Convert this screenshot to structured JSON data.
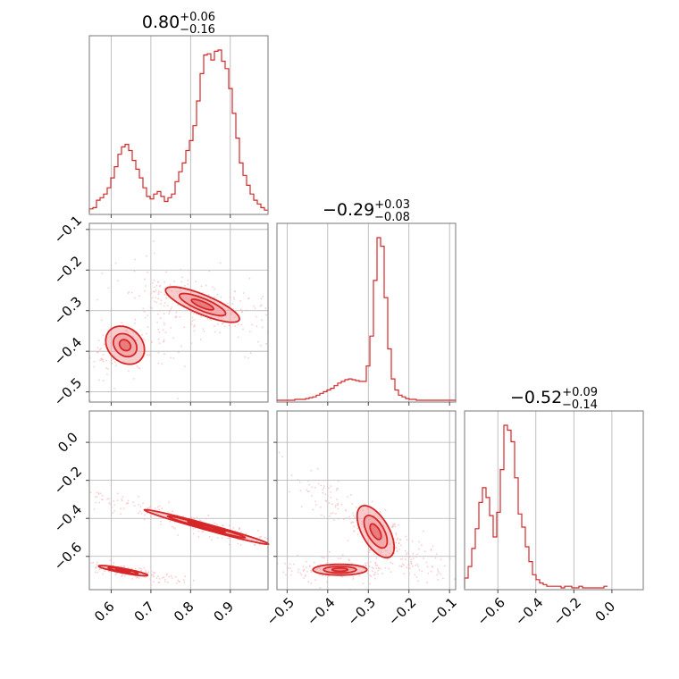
{
  "chart_data": {
    "type": "corner",
    "color": "#d62728",
    "fill_color": "#f2a0a3",
    "point_color": "#f6b9bc",
    "grid": true,
    "parameters": [
      {
        "title_value": "0.80",
        "title_plus": "+0.06",
        "title_minus": "−0.16",
        "range": [
          0.545,
          0.995
        ],
        "ticks": [
          0.6,
          0.7,
          0.8,
          0.9
        ],
        "tick_labels": [
          "0.6",
          "0.7",
          "0.8",
          "0.9"
        ]
      },
      {
        "title_value": "−0.29",
        "title_plus": "+0.03",
        "title_minus": "−0.08",
        "range": [
          -0.525,
          -0.085
        ],
        "ticks": [
          -0.5,
          -0.4,
          -0.3,
          -0.2,
          -0.1
        ],
        "tick_labels": [
          "−0.5",
          "−0.4",
          "−0.3",
          "−0.2",
          "−0.1"
        ]
      },
      {
        "title_value": "−0.52",
        "title_plus": "+0.09",
        "title_minus": "−0.14",
        "range": [
          -0.775,
          0.165
        ],
        "ticks": [
          -0.6,
          -0.4,
          -0.2,
          0.0
        ],
        "tick_labels": [
          "−0.6",
          "−0.4",
          "−0.2",
          "0.0"
        ]
      }
    ],
    "histograms": [
      {
        "bin_start": 0.545,
        "bin_width": 0.009,
        "counts": [
          3,
          4,
          10,
          12,
          15,
          20,
          28,
          37,
          47,
          53,
          55,
          50,
          42,
          35,
          28,
          20,
          13,
          11,
          15,
          17,
          13,
          9,
          12,
          15,
          25,
          33,
          40,
          50,
          58,
          70,
          90,
          112,
          127,
          128,
          123,
          130,
          131,
          122,
          116,
          100,
          80,
          60,
          40,
          30,
          22,
          15,
          10,
          7,
          4,
          2
        ]
      },
      {
        "bin_start": -0.525,
        "bin_width": 0.0088,
        "counts": [
          0,
          0,
          0,
          0,
          0,
          1,
          1,
          1,
          2,
          3,
          4,
          6,
          8,
          10,
          12,
          14,
          17,
          20,
          22,
          24,
          25,
          24,
          23,
          22,
          22,
          40,
          75,
          140,
          190,
          180,
          120,
          60,
          25,
          12,
          6,
          4,
          2,
          1,
          1,
          0,
          0,
          0,
          0,
          0,
          0,
          0,
          0,
          0,
          0,
          0
        ]
      },
      {
        "bin_start": -0.775,
        "bin_width": 0.0188,
        "counts": [
          6,
          13,
          24,
          36,
          52,
          61,
          55,
          44,
          31,
          46,
          72,
          99,
          96,
          89,
          67,
          45,
          37,
          25,
          16,
          8,
          5,
          3,
          2,
          1,
          1,
          1,
          1,
          0,
          1,
          1,
          0,
          0,
          1,
          0,
          0,
          0,
          0,
          0,
          0,
          1
        ]
      }
    ],
    "contours": [
      {
        "x_param": 0,
        "y_param": 1,
        "clusters": [
          {
            "cx": 0.83,
            "cy": -0.285,
            "sx": 0.05,
            "sy": 0.012,
            "rot": -22,
            "levels": [
              2.0,
              1.25,
              0.6
            ]
          },
          {
            "cx": 0.635,
            "cy": -0.385,
            "sx": 0.028,
            "sy": 0.022,
            "rot": -40,
            "levels": [
              1.9,
              1.15,
              0.55
            ]
          }
        ]
      },
      {
        "x_param": 0,
        "y_param": 2,
        "clusters": [
          {
            "cx": 0.84,
            "cy": -0.445,
            "sx": 0.09,
            "sy": 0.007,
            "rot": -30,
            "levels": [
              2.0,
              1.25,
              0.6
            ]
          },
          {
            "cx": 0.63,
            "cy": -0.675,
            "sx": 0.035,
            "sy": 0.006,
            "rot": -22,
            "levels": [
              1.9,
              1.15,
              0.55
            ]
          }
        ]
      },
      {
        "x_param": 1,
        "y_param": 2,
        "clusters": [
          {
            "cx": -0.282,
            "cy": -0.47,
            "sx": 0.018,
            "sy": 0.07,
            "rot": 12,
            "levels": [
              2.0,
              1.25,
              0.6
            ]
          },
          {
            "cx": -0.37,
            "cy": -0.67,
            "sx": 0.035,
            "sy": 0.015,
            "rot": 0,
            "levels": [
              1.9,
              1.15,
              0.55
            ]
          }
        ]
      }
    ]
  }
}
